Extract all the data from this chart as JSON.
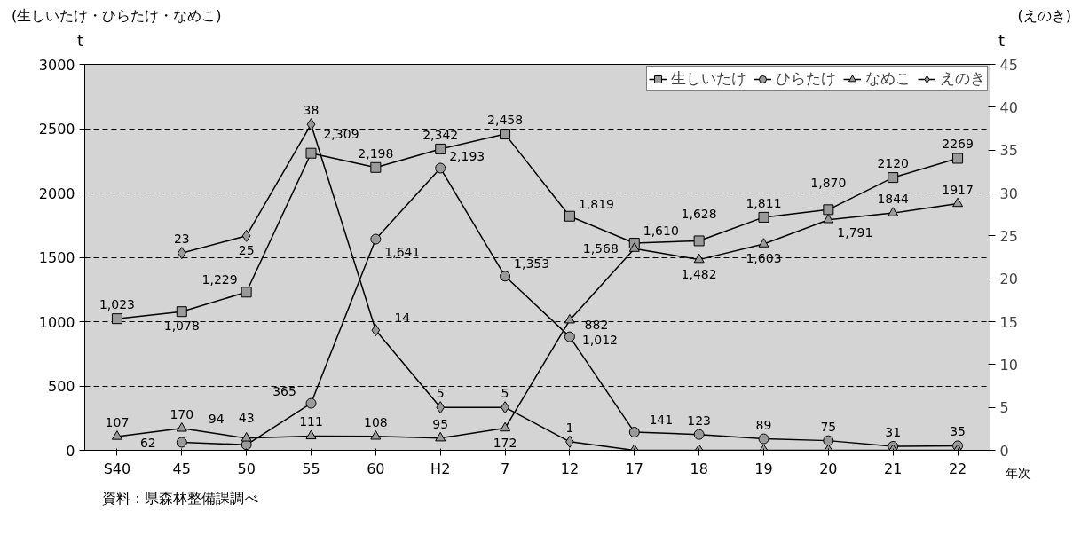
{
  "chart_data": {
    "type": "line",
    "categories": [
      "S40",
      "45",
      "50",
      "55",
      "60",
      "H2",
      "7",
      "12",
      "17",
      "18",
      "19",
      "20",
      "21",
      "22"
    ],
    "series": [
      {
        "name": "生しいたけ",
        "color": "#000000",
        "marker": "square",
        "values": [
          1023,
          1078,
          1229,
          2309,
          2198,
          2342,
          2458,
          1819,
          1610,
          1628,
          1811,
          1870,
          2120,
          2269
        ],
        "value_labels": [
          "1,023",
          "1,078",
          "1,229",
          "2,309",
          "2,198",
          "2,342",
          "2,458",
          "1,819",
          "1,610",
          "1,628",
          "1,811",
          "1,870",
          "2120",
          "2269"
        ]
      },
      {
        "name": "ひらたけ",
        "color": "#000000",
        "marker": "circle",
        "values": [
          null,
          62,
          43,
          365,
          1641,
          2193,
          1353,
          882,
          141,
          123,
          89,
          75,
          31,
          35
        ],
        "value_labels": [
          null,
          "62",
          "43",
          "365",
          "1,641",
          "2,193",
          "1,353",
          "882",
          "141",
          "123",
          "89",
          "75",
          "31",
          "35"
        ]
      },
      {
        "name": "なめこ",
        "color": "#000000",
        "marker": "triangle",
        "values": [
          107,
          170,
          94,
          111,
          108,
          95,
          172,
          1012,
          1568,
          1482,
          1603,
          1791,
          1844,
          1917
        ],
        "value_labels": [
          "107",
          "170",
          "94",
          "111",
          "108",
          "95",
          "172",
          "1,012",
          "1,568",
          "1,482",
          "1,603",
          "1,791",
          "1844",
          "1917"
        ]
      },
      {
        "name": "えのき",
        "color": "#000000",
        "marker": "diamond",
        "axis": "y2",
        "values": [
          null,
          23,
          25,
          38,
          14,
          5,
          5,
          1,
          0,
          0,
          0,
          0,
          0,
          0
        ],
        "value_labels": [
          null,
          "23",
          "25",
          "38",
          "14",
          "5",
          "5",
          "1",
          null,
          null,
          null,
          null,
          null,
          null
        ]
      }
    ],
    "ylim": [
      0,
      3000
    ],
    "yticks": [
      0,
      500,
      1000,
      1500,
      2000,
      2500,
      3000
    ],
    "y2lim": [
      0,
      45
    ],
    "y2ticks": [
      0,
      5,
      10,
      15,
      20,
      25,
      30,
      35,
      40,
      45
    ],
    "ylabel": "t",
    "y2label": "t",
    "xlabel": "年次",
    "grid": "y",
    "legend": "top right",
    "line_style": "solid",
    "annotations": [
      "(生しいたけ・ひらたけ・なめこ)",
      "(えのき)",
      "資料：県森林整備課調べ"
    ]
  }
}
